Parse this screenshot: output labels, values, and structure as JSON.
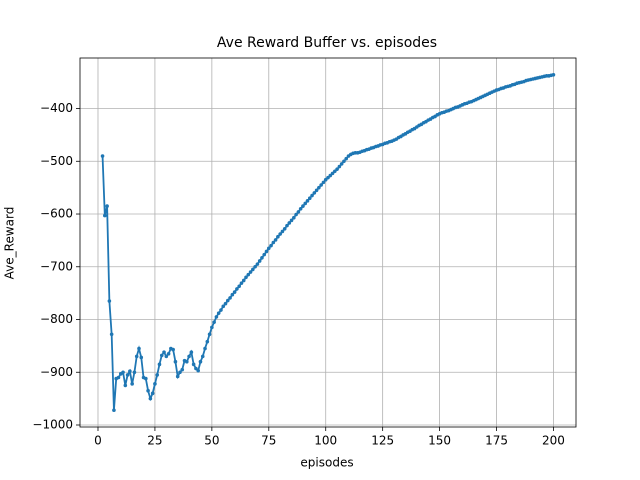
{
  "chart_data": {
    "type": "line",
    "title": "Ave Reward Buffer vs. episodes",
    "x_label": "episodes",
    "y_label": "Ave_Reward",
    "grid": true,
    "marker": "o",
    "xlim": [
      -7.9,
      209.9
    ],
    "ylim": [
      -1003.8,
      -304.2
    ],
    "xticks": [
      0,
      25,
      50,
      75,
      100,
      125,
      150,
      175,
      200
    ],
    "yticks": [
      {
        "value": -1000,
        "label": "−1000"
      },
      {
        "value": -900,
        "label": "−900"
      },
      {
        "value": -800,
        "label": "−800"
      },
      {
        "value": -700,
        "label": "−700"
      },
      {
        "value": -600,
        "label": "−600"
      },
      {
        "value": -500,
        "label": "−500"
      },
      {
        "value": -400,
        "label": "−400"
      }
    ],
    "x": [
      2,
      3,
      4,
      5,
      6,
      7,
      8,
      9,
      10,
      11,
      12,
      13,
      14,
      15,
      16,
      17,
      18,
      19,
      20,
      21,
      22,
      23,
      24,
      25,
      26,
      27,
      28,
      29,
      30,
      31,
      32,
      33,
      34,
      35,
      36,
      37,
      38,
      39,
      40,
      41,
      42,
      43,
      44,
      45,
      46,
      47,
      48,
      49,
      50,
      51,
      52,
      53,
      54,
      55,
      56,
      57,
      58,
      59,
      60,
      61,
      62,
      63,
      64,
      65,
      66,
      67,
      68,
      69,
      70,
      71,
      72,
      73,
      74,
      75,
      76,
      77,
      78,
      79,
      80,
      81,
      82,
      83,
      84,
      85,
      86,
      87,
      88,
      89,
      90,
      91,
      92,
      93,
      94,
      95,
      96,
      97,
      98,
      99,
      100,
      101,
      102,
      103,
      104,
      105,
      106,
      107,
      108,
      109,
      110,
      111,
      112,
      113,
      114,
      115,
      116,
      117,
      118,
      119,
      120,
      121,
      122,
      123,
      124,
      125,
      126,
      127,
      128,
      129,
      130,
      131,
      132,
      133,
      134,
      135,
      136,
      137,
      138,
      139,
      140,
      141,
      142,
      143,
      144,
      145,
      146,
      147,
      148,
      149,
      150,
      151,
      152,
      153,
      154,
      155,
      156,
      157,
      158,
      159,
      160,
      161,
      162,
      163,
      164,
      165,
      166,
      167,
      168,
      169,
      170,
      171,
      172,
      173,
      174,
      175,
      176,
      177,
      178,
      179,
      180,
      181,
      182,
      183,
      184,
      185,
      186,
      187,
      188,
      189,
      190,
      191,
      192,
      193,
      194,
      195,
      196,
      197,
      198,
      199,
      200
    ],
    "series": [
      {
        "color": "#1f77b4",
        "values": [
          -490,
          -603,
          -585,
          -765,
          -828,
          -972,
          -912,
          -910,
          -903,
          -900,
          -925,
          -905,
          -898,
          -922,
          -900,
          -870,
          -855,
          -872,
          -910,
          -912,
          -935,
          -950,
          -940,
          -922,
          -905,
          -885,
          -868,
          -862,
          -870,
          -865,
          -855,
          -857,
          -880,
          -908,
          -900,
          -895,
          -878,
          -880,
          -870,
          -862,
          -885,
          -893,
          -897,
          -880,
          -870,
          -855,
          -842,
          -828,
          -815,
          -805,
          -795,
          -788,
          -782,
          -775,
          -770,
          -764,
          -759,
          -753,
          -748,
          -742,
          -737,
          -731,
          -726,
          -720,
          -715,
          -710,
          -705,
          -700,
          -695,
          -689,
          -683,
          -677,
          -671,
          -665,
          -660,
          -654,
          -649,
          -643,
          -638,
          -633,
          -628,
          -622,
          -617,
          -612,
          -607,
          -601,
          -596,
          -590,
          -585,
          -580,
          -575,
          -570,
          -565,
          -560,
          -555,
          -550,
          -545,
          -540,
          -535,
          -531,
          -527,
          -523,
          -519,
          -515,
          -510,
          -505,
          -500,
          -495,
          -490,
          -487,
          -485,
          -484,
          -484,
          -483,
          -481,
          -480,
          -478,
          -477,
          -475,
          -474,
          -472,
          -471,
          -469,
          -468,
          -466,
          -465,
          -463,
          -462,
          -460,
          -458,
          -455,
          -453,
          -450,
          -448,
          -445,
          -443,
          -440,
          -438,
          -435,
          -432,
          -430,
          -427,
          -425,
          -422,
          -420,
          -417,
          -415,
          -412,
          -410,
          -408,
          -407,
          -405,
          -404,
          -402,
          -400,
          -398,
          -397,
          -395,
          -393,
          -391,
          -390,
          -388,
          -387,
          -385,
          -383,
          -381,
          -379,
          -377,
          -375,
          -373,
          -371,
          -369,
          -367,
          -365,
          -364,
          -362,
          -361,
          -359,
          -358,
          -357,
          -355,
          -354,
          -352,
          -351,
          -350,
          -349,
          -347,
          -346,
          -345,
          -344,
          -343,
          -342,
          -341,
          -340,
          -339,
          -338,
          -338,
          -337,
          -336
        ]
      }
    ]
  }
}
